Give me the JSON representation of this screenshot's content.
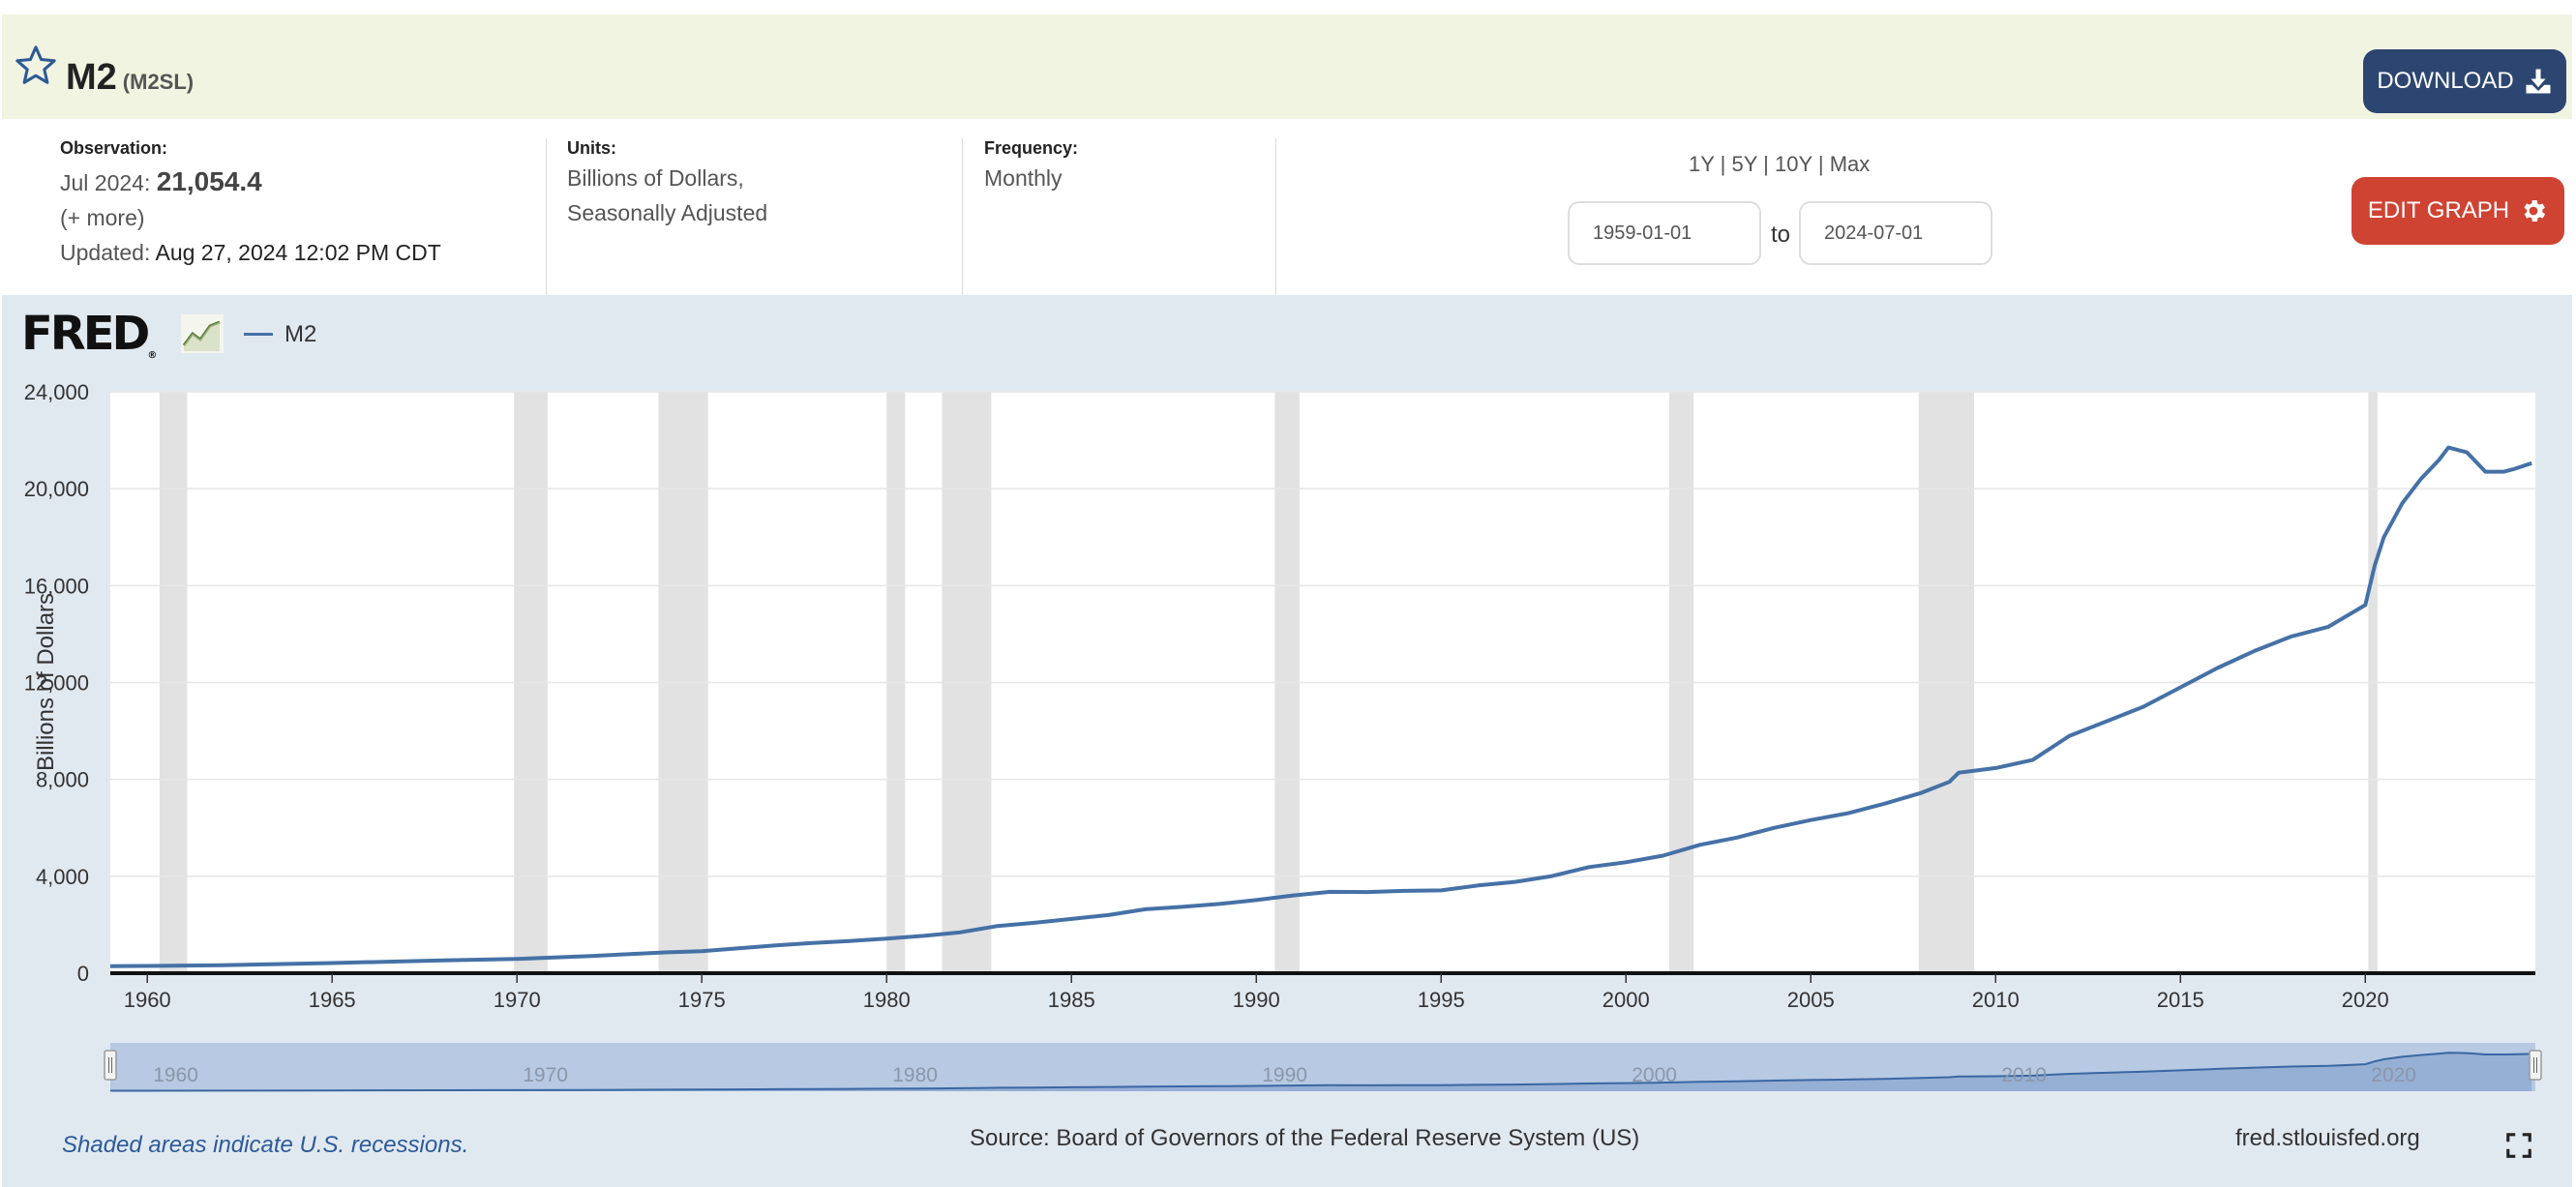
{
  "header": {
    "title": "M2",
    "series_id": "(M2SL)",
    "download_label": "DOWNLOAD"
  },
  "info": {
    "observation_label": "Observation:",
    "observation_date": "Jul 2024:",
    "observation_value": "21,054.4",
    "more_link": "(+ more)",
    "updated_label": "Updated:",
    "updated_value": "Aug 27, 2024 12:02 PM CDT",
    "units_label": "Units:",
    "units_line1": "Billions of Dollars,",
    "units_line2": "Seasonally Adjusted",
    "frequency_label": "Frequency:",
    "frequency_value": "Monthly"
  },
  "range": {
    "links": [
      "1Y",
      "5Y",
      "10Y",
      "Max"
    ],
    "separator": "|",
    "start_date": "1959-01-01",
    "end_date": "2024-07-01",
    "to_label": "to",
    "edit_label": "EDIT GRAPH"
  },
  "footer": {
    "recession_note": "Shaded areas indicate U.S. recessions.",
    "source": "Source: Board of Governors of the Federal Reserve System (US)",
    "url": "fred.stlouisfed.org"
  },
  "colors": {
    "series": "#4571a6",
    "recession": "#e2e2e2",
    "header_bg": "#f1f4e1",
    "chart_bg": "#e1e9f0",
    "download_btn": "#2d4671",
    "edit_btn": "#cf4332"
  },
  "chart_data": {
    "type": "line",
    "title": "",
    "xlabel": "",
    "ylabel": "Billions of Dollars",
    "xlim": [
      1959.0,
      2024.6
    ],
    "ylim": [
      0,
      24000
    ],
    "yticks": [
      0,
      4000,
      8000,
      12000,
      16000,
      20000,
      24000
    ],
    "ytick_labels": [
      "0",
      "4,000",
      "8,000",
      "12,000",
      "16,000",
      "20,000",
      "24,000"
    ],
    "xticks": [
      1960,
      1965,
      1970,
      1975,
      1980,
      1985,
      1990,
      1995,
      2000,
      2005,
      2010,
      2015,
      2020
    ],
    "navigator_ticks": [
      1960,
      1970,
      1980,
      1990,
      2000,
      2010,
      2020
    ],
    "legend": "top-left",
    "grid": true,
    "series": [
      {
        "name": "M2",
        "x": [
          1959.0,
          1960.0,
          1962.0,
          1965.0,
          1968.0,
          1970.0,
          1972.0,
          1974.0,
          1975.0,
          1976.0,
          1977.0,
          1978.0,
          1979.0,
          1980.0,
          1981.0,
          1982.0,
          1983.0,
          1984.0,
          1985.0,
          1986.0,
          1987.0,
          1988.0,
          1989.0,
          1990.0,
          1991.0,
          1992.0,
          1993.0,
          1994.0,
          1995.0,
          1996.0,
          1997.0,
          1998.0,
          1999.0,
          2000.0,
          2001.0,
          2002.0,
          2003.0,
          2004.0,
          2005.0,
          2006.0,
          2007.0,
          2008.0,
          2008.75,
          2009.0,
          2010.0,
          2011.0,
          2012.0,
          2013.0,
          2014.0,
          2015.0,
          2016.0,
          2017.0,
          2018.0,
          2019.0,
          2020.0,
          2020.25,
          2020.5,
          2021.0,
          2021.5,
          2022.0,
          2022.25,
          2022.75,
          2023.0,
          2023.25,
          2023.75,
          2024.0,
          2024.5
        ],
        "values": [
          290,
          300,
          330,
          420,
          530,
          590,
          710,
          860,
          910,
          1030,
          1150,
          1250,
          1330,
          1430,
          1540,
          1690,
          1950,
          2080,
          2240,
          2400,
          2640,
          2740,
          2860,
          3020,
          3210,
          3360,
          3350,
          3400,
          3420,
          3620,
          3770,
          4010,
          4380,
          4580,
          4850,
          5300,
          5600,
          6000,
          6320,
          6600,
          7000,
          7450,
          7900,
          8280,
          8470,
          8800,
          9800,
          10400,
          11000,
          11800,
          12600,
          13300,
          13900,
          14300,
          15200,
          16800,
          18000,
          19400,
          20400,
          21200,
          21700,
          21500,
          21100,
          20700,
          20700,
          20800,
          21054
        ]
      }
    ],
    "recessions": [
      [
        1960.33,
        1961.08
      ],
      [
        1969.92,
        1970.83
      ],
      [
        1973.83,
        1975.17
      ],
      [
        1980.0,
        1980.5
      ],
      [
        1981.5,
        1982.83
      ],
      [
        1990.5,
        1991.17
      ],
      [
        2001.17,
        2001.83
      ],
      [
        2007.92,
        2009.42
      ],
      [
        2020.08,
        2020.33
      ]
    ]
  }
}
